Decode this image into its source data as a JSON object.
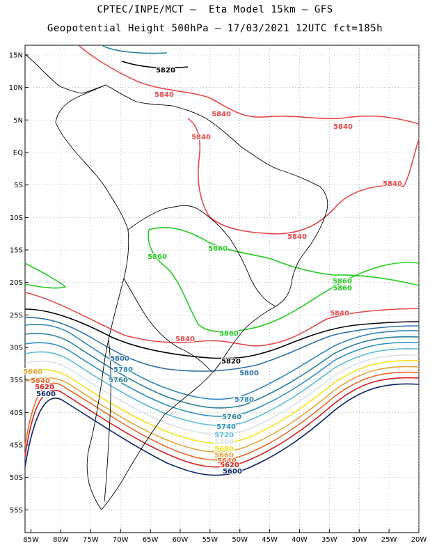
{
  "header": {
    "line1": "CPTEC/INPE/MCT –  Eta Model 15km – GFS",
    "line2": "Geopotential Height 500hPa – 17/03/2021 12UTC fct=185h"
  },
  "axes": {
    "lat_labels": [
      "15N",
      "10N",
      "5N",
      "EQ",
      "5S",
      "10S",
      "15S",
      "20S",
      "25S",
      "30S",
      "35S",
      "40S",
      "45S",
      "50S",
      "55S"
    ],
    "lon_labels": [
      "85W",
      "80W",
      "75W",
      "70W",
      "65W",
      "60W",
      "55W",
      "50W",
      "45W",
      "40W",
      "35W",
      "30W",
      "25W",
      "20W"
    ]
  },
  "colors": {
    "c5600": "#0a1f6e",
    "c5620": "#d62020",
    "c5640": "#e86a2a",
    "c5660": "#e2a43a",
    "c5680": "#f2e11c",
    "c5700": "#d9e0ea",
    "c5720": "#5eb8d6",
    "c5740": "#2e90c4",
    "c5760": "#2a7f99",
    "c5780": "#2f86c0",
    "c5800": "#2f6fa8",
    "c5820": "#000000",
    "c5840": "#e8474a",
    "c5860": "#22cc22",
    "coast": "#000000",
    "grid": "#999999"
  },
  "contour_labels": [
    {
      "text": "5820",
      "color": "c5820"
    },
    {
      "text": "5840",
      "color": "c5840"
    },
    {
      "text": "5840",
      "color": "c5840"
    },
    {
      "text": "5840",
      "color": "c5840"
    },
    {
      "text": "5840",
      "color": "c5840"
    },
    {
      "text": "5840",
      "color": "c5840"
    },
    {
      "text": "5840",
      "color": "c5840"
    },
    {
      "text": "5840",
      "color": "c5840"
    },
    {
      "text": "5860",
      "color": "c5860"
    },
    {
      "text": "5860",
      "color": "c5860"
    },
    {
      "text": "5860",
      "color": "c5860"
    },
    {
      "text": "5860",
      "color": "c5860"
    },
    {
      "text": "5860",
      "color": "c5860"
    },
    {
      "text": "5840",
      "color": "c5840"
    },
    {
      "text": "5820",
      "color": "c5820"
    },
    {
      "text": "5800",
      "color": "c5800"
    },
    {
      "text": "5800",
      "color": "c5800"
    },
    {
      "text": "5780",
      "color": "c5780"
    },
    {
      "text": "5780",
      "color": "c5780"
    },
    {
      "text": "5760",
      "color": "c5760"
    },
    {
      "text": "5760",
      "color": "c5760"
    },
    {
      "text": "5740",
      "color": "c5740"
    },
    {
      "text": "5720",
      "color": "c5720"
    },
    {
      "text": "5700",
      "color": "c5700"
    },
    {
      "text": "5680",
      "color": "c5680"
    },
    {
      "text": "5660",
      "color": "c5660"
    },
    {
      "text": "5640",
      "color": "c5640"
    },
    {
      "text": "5620",
      "color": "c5620"
    },
    {
      "text": "5600",
      "color": "c5600"
    },
    {
      "text": "5660",
      "color": "c5660"
    },
    {
      "text": "5640",
      "color": "c5640"
    },
    {
      "text": "5620",
      "color": "c5620"
    },
    {
      "text": "5600",
      "color": "c5600"
    }
  ]
}
